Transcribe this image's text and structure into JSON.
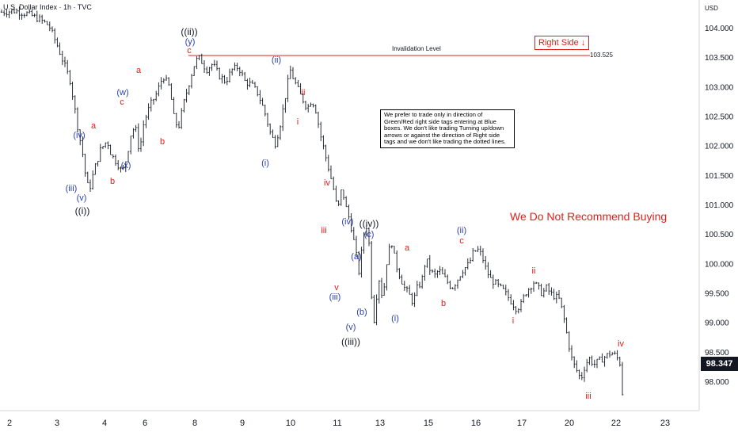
{
  "header": {
    "title": "U.S. Dollar Index · 1h · TVC"
  },
  "currency": "USD",
  "current_price": "98.347",
  "invalidation": {
    "label": "Invalidation Level",
    "value": "103.525"
  },
  "right_side": {
    "label": "Right Side",
    "arrow": "↓"
  },
  "recommendation": "We Do Not Recommend Buying",
  "note": "We prefer to trade only in direction of Green/Red right side tags entering at Blue boxes. We don't like trading Turning up/down arrows or against the direction of Right side tags and we don't like trading the dotted lines.",
  "colors": {
    "red": "#e0201b",
    "blue": "#2a3fb0",
    "black": "#131722",
    "price_bg": "#131722"
  },
  "chart_data": {
    "type": "ohlc",
    "ylim": [
      97.6,
      104.4
    ],
    "y_ticks": [
      "104.000",
      "103.500",
      "103.000",
      "102.500",
      "102.000",
      "101.500",
      "101.000",
      "100.500",
      "100.000",
      "99.500",
      "99.000",
      "98.500",
      "98.000"
    ],
    "x_ticks": [
      "2",
      "3",
      "4",
      "6",
      "8",
      "9",
      "10",
      "11",
      "13",
      "15",
      "16",
      "17",
      "20",
      "22",
      "23"
    ],
    "series": [
      {
        "values": [
          [
            0,
            104.28
          ],
          [
            0.6,
            104.3
          ],
          [
            1.2,
            104.25
          ],
          [
            1.8,
            104.15
          ],
          [
            2.2,
            104.05
          ],
          [
            2.6,
            103.7
          ],
          [
            2.9,
            103.4
          ],
          [
            3.2,
            103.1
          ],
          [
            3.5,
            102.4
          ],
          [
            3.8,
            101.8
          ],
          [
            3.95,
            101.35
          ],
          [
            4.1,
            101.3
          ],
          [
            4.3,
            101.6
          ],
          [
            4.6,
            101.95
          ],
          [
            4.9,
            102.1
          ],
          [
            5.1,
            101.85
          ],
          [
            5.4,
            101.7
          ],
          [
            5.6,
            101.55
          ],
          [
            5.8,
            101.8
          ],
          [
            6.0,
            102.2
          ],
          [
            6.2,
            102.35
          ],
          [
            6.4,
            101.9
          ],
          [
            6.6,
            102.4
          ],
          [
            6.9,
            102.7
          ],
          [
            7.2,
            102.9
          ],
          [
            7.5,
            103.2
          ],
          [
            7.8,
            103.0
          ],
          [
            8.0,
            102.5
          ],
          [
            8.2,
            102.3
          ],
          [
            8.5,
            102.8
          ],
          [
            8.8,
            103.2
          ],
          [
            9.0,
            103.45
          ],
          [
            9.2,
            103.5
          ],
          [
            9.5,
            103.3
          ],
          [
            9.8,
            103.4
          ],
          [
            10.1,
            103.2
          ],
          [
            10.4,
            103.1
          ],
          [
            10.7,
            103.3
          ],
          [
            11.0,
            103.35
          ],
          [
            11.3,
            103.1
          ],
          [
            11.6,
            103.05
          ],
          [
            11.9,
            102.9
          ],
          [
            12.2,
            102.6
          ],
          [
            12.5,
            102.2
          ],
          [
            12.7,
            102.05
          ],
          [
            12.9,
            102.3
          ],
          [
            13.2,
            102.9
          ],
          [
            13.4,
            103.3
          ],
          [
            13.6,
            103.1
          ],
          [
            13.9,
            102.85
          ],
          [
            14.2,
            102.65
          ],
          [
            14.4,
            102.8
          ],
          [
            14.6,
            102.6
          ],
          [
            14.8,
            102.2
          ],
          [
            15.0,
            101.9
          ],
          [
            15.2,
            101.6
          ],
          [
            15.4,
            101.3
          ],
          [
            15.6,
            100.9
          ],
          [
            15.8,
            101.3
          ],
          [
            16.0,
            100.95
          ],
          [
            16.2,
            100.7
          ],
          [
            16.4,
            100.3
          ],
          [
            16.6,
            99.85
          ],
          [
            16.8,
            100.5
          ],
          [
            17.0,
            100.7
          ],
          [
            17.1,
            100.1
          ],
          [
            17.2,
            99.3
          ],
          [
            17.3,
            99.05
          ],
          [
            17.5,
            99.8
          ],
          [
            17.7,
            99.4
          ],
          [
            17.9,
            100.1
          ],
          [
            18.1,
            100.4
          ],
          [
            18.3,
            100.0
          ],
          [
            18.5,
            99.8
          ],
          [
            18.7,
            99.6
          ],
          [
            18.9,
            99.5
          ],
          [
            19.1,
            99.35
          ],
          [
            19.3,
            99.6
          ],
          [
            19.5,
            99.7
          ],
          [
            19.7,
            100.1
          ],
          [
            19.9,
            99.9
          ],
          [
            20.1,
            99.8
          ],
          [
            20.3,
            99.9
          ],
          [
            20.6,
            99.75
          ],
          [
            20.9,
            99.6
          ],
          [
            21.1,
            99.7
          ],
          [
            21.4,
            99.9
          ],
          [
            21.7,
            100.0
          ],
          [
            21.9,
            100.2
          ],
          [
            22.1,
            100.25
          ],
          [
            22.3,
            100.15
          ],
          [
            22.5,
            99.9
          ],
          [
            22.7,
            99.75
          ],
          [
            23.0,
            99.65
          ],
          [
            23.3,
            99.55
          ],
          [
            23.6,
            99.4
          ],
          [
            23.9,
            99.25
          ],
          [
            24.1,
            99.3
          ],
          [
            24.3,
            99.5
          ],
          [
            24.5,
            99.6
          ],
          [
            24.7,
            99.7
          ],
          [
            24.9,
            99.6
          ],
          [
            25.1,
            99.5
          ],
          [
            25.3,
            99.6
          ],
          [
            25.5,
            99.5
          ],
          [
            25.7,
            99.45
          ],
          [
            25.9,
            99.4
          ],
          [
            26.1,
            99.1
          ],
          [
            26.3,
            98.7
          ],
          [
            26.5,
            98.35
          ],
          [
            26.7,
            98.2
          ],
          [
            26.9,
            98.05
          ],
          [
            27.1,
            98.3
          ],
          [
            27.3,
            98.4
          ],
          [
            27.5,
            98.3
          ],
          [
            27.7,
            98.35
          ],
          [
            27.9,
            98.4
          ],
          [
            28.1,
            98.45
          ],
          [
            28.3,
            98.5
          ],
          [
            28.5,
            98.45
          ],
          [
            28.7,
            98.35
          ],
          [
            28.85,
            97.7
          ]
        ]
      }
    ],
    "annotations": {
      "black": [
        "((i))",
        "((ii))",
        "((iii))",
        "((iv))"
      ],
      "blue": [
        "(iii)",
        "(iv)",
        "(v)",
        "(x)",
        "(w)",
        "(y)",
        "(ii)",
        "(i)",
        "(iv)",
        "(a)",
        "(iii)",
        "(v)",
        "(b)",
        "(c)",
        "(i)",
        "(ii)"
      ],
      "red": [
        "a",
        "b",
        "a",
        "b",
        "c",
        "c",
        "ii",
        "i",
        "iv",
        "iii",
        "v",
        "a",
        "b",
        "c",
        "ii",
        "i",
        "iv",
        "iii"
      ]
    }
  }
}
